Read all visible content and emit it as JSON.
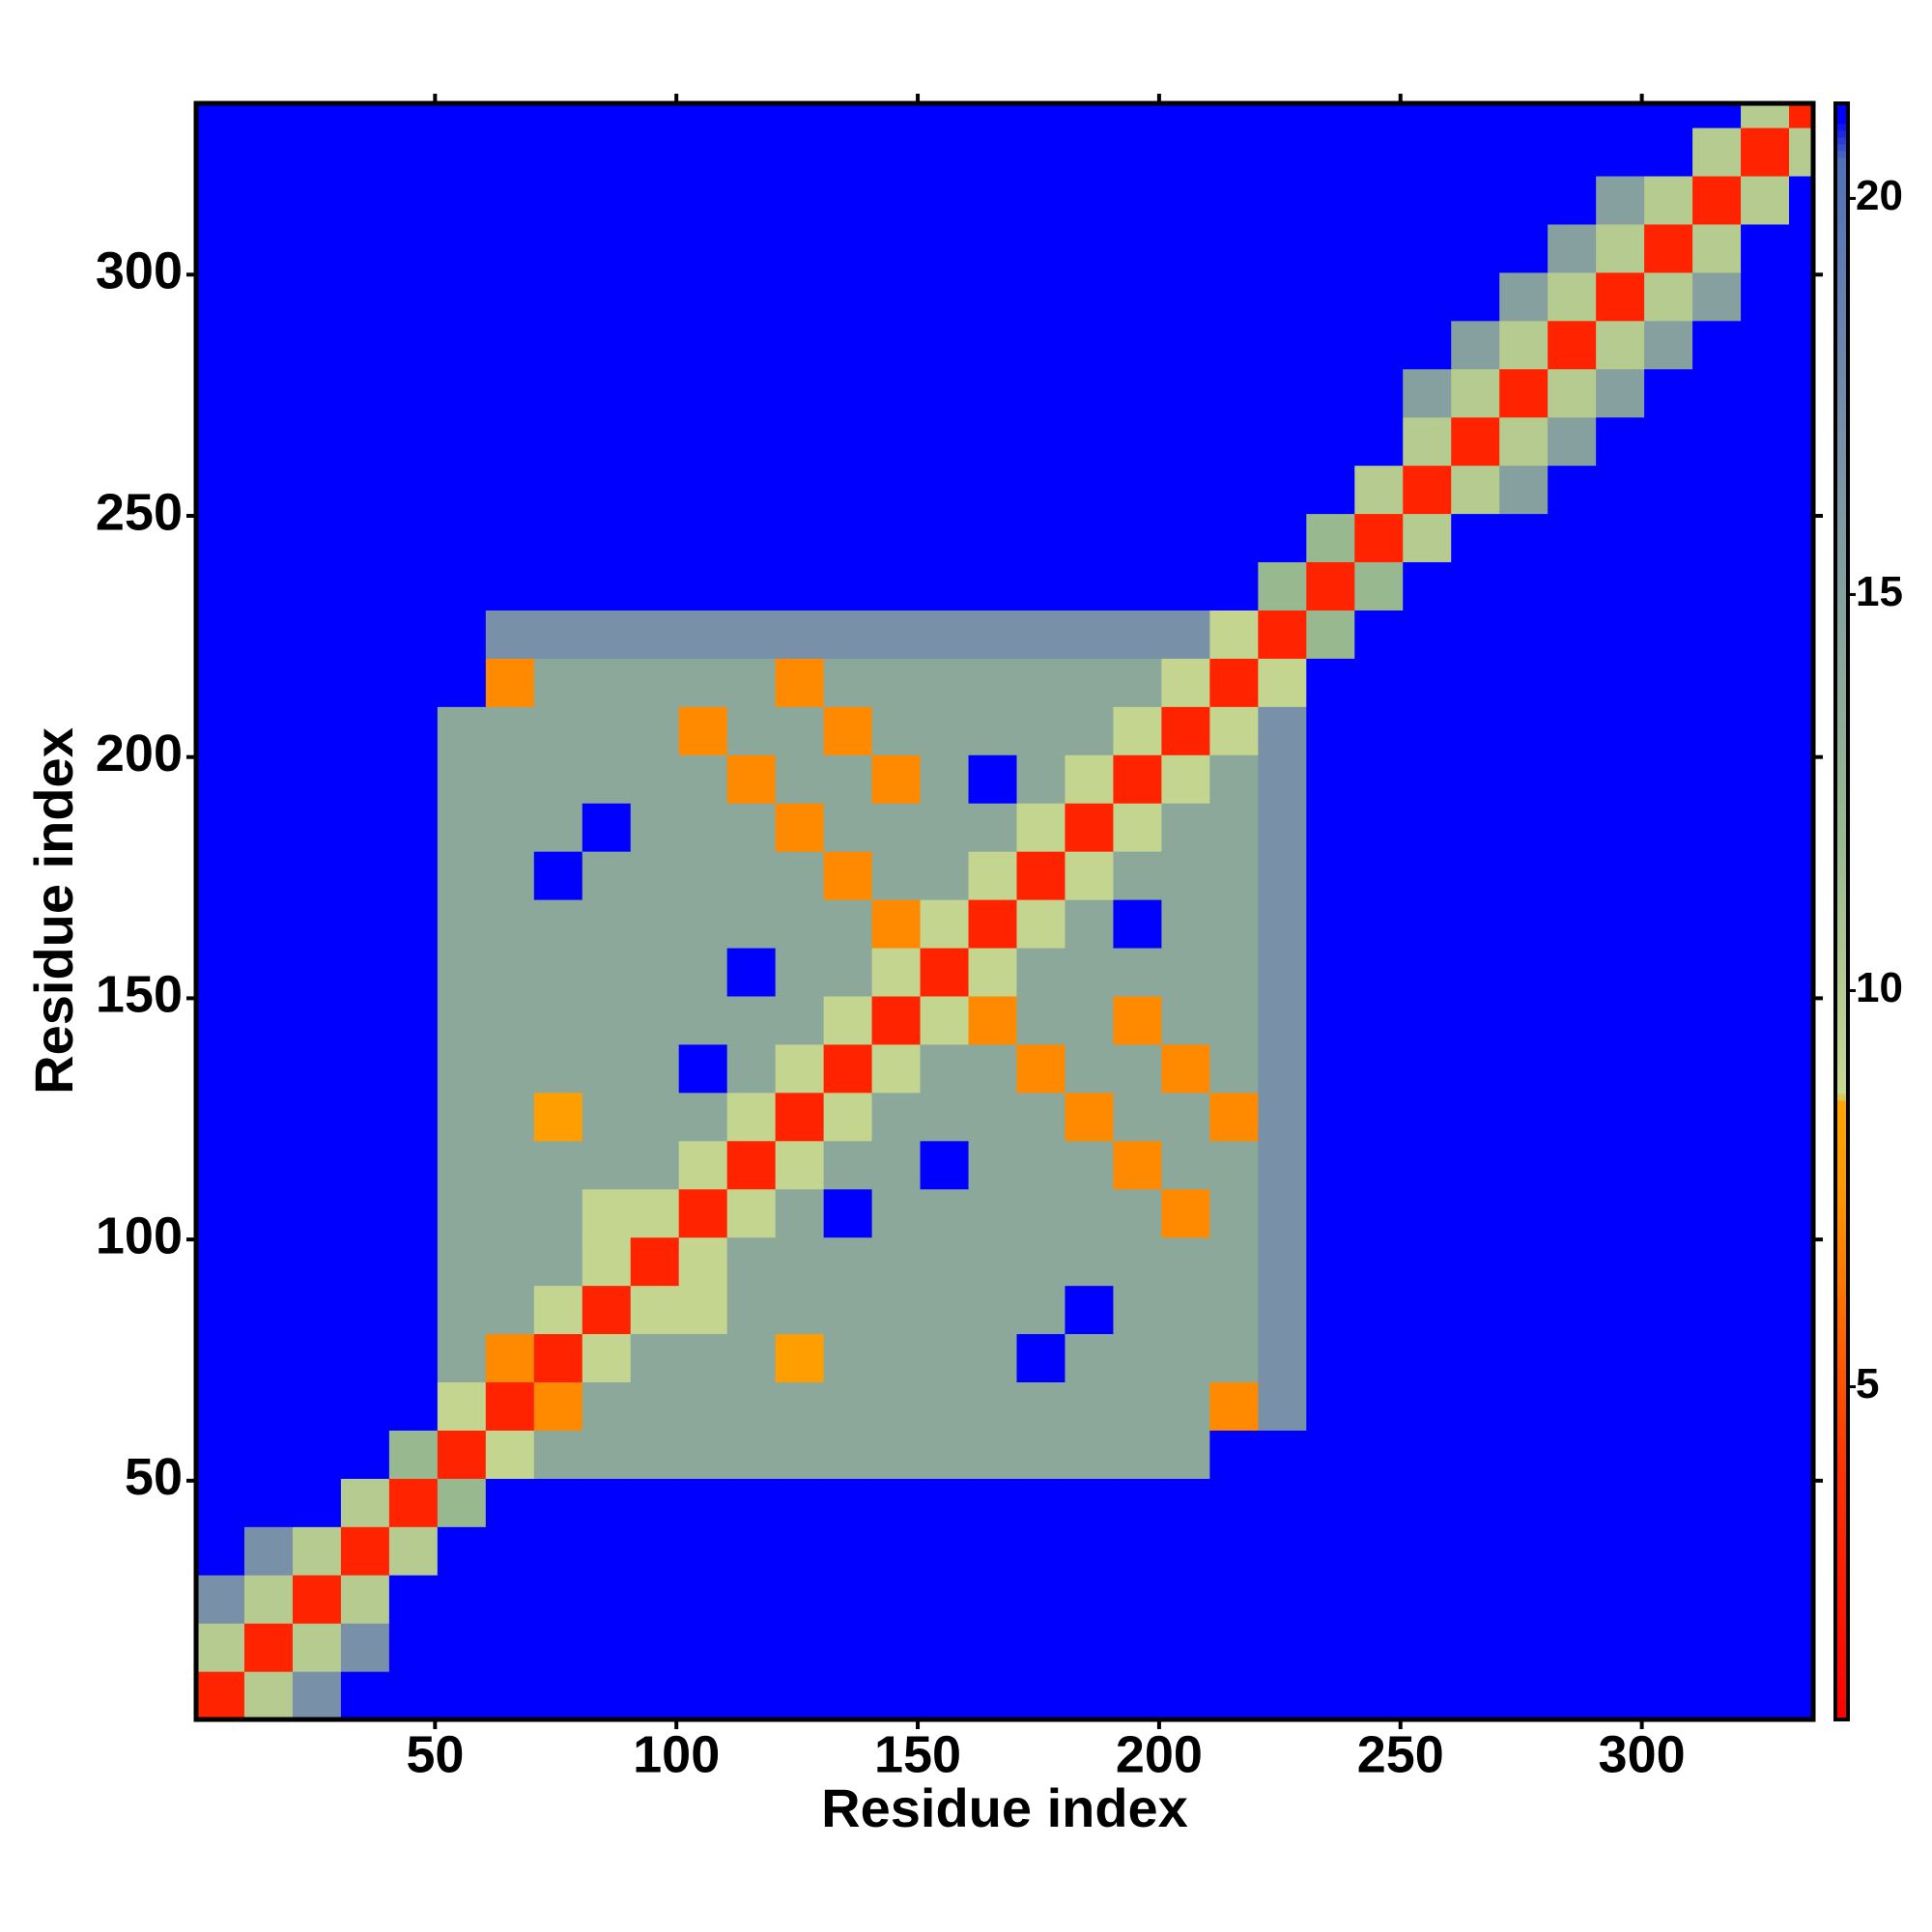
{
  "chart_data": {
    "type": "heatmap",
    "xlabel": "Residue index",
    "ylabel": "Residue index",
    "xlim": [
      0.5,
      335.5
    ],
    "ylim": [
      0.5,
      335.5
    ],
    "xticks": [
      50,
      100,
      150,
      200,
      250,
      300
    ],
    "yticks": [
      50,
      100,
      150,
      200,
      250,
      300
    ],
    "bins": [
      0.5,
      10.5,
      20.5,
      30.5,
      40.5,
      50.5,
      60.5,
      70.5,
      80.5,
      90.5,
      100.5,
      110.5,
      120.5,
      130.5,
      140.5,
      150.5,
      160.5,
      170.5,
      180.5,
      190.5,
      200.5,
      210.5,
      220.5,
      230.5,
      240.5,
      250.5,
      260.5,
      270.5,
      280.5,
      290.5,
      300.5,
      310.5,
      320.5,
      330.5,
      335.5
    ],
    "clim": [
      0.8,
      21.2
    ],
    "cticks": [
      5,
      10,
      15,
      20
    ],
    "colorscale": [
      [
        0.8,
        "#ff0000"
      ],
      [
        4,
        "#ff3300"
      ],
      [
        7.5,
        "#ff9900"
      ],
      [
        8.6,
        "#ffa500"
      ],
      [
        8.7,
        "#c8d890"
      ],
      [
        12,
        "#98b890"
      ],
      [
        17,
        "#7890a8"
      ],
      [
        20.5,
        "#5070b8"
      ],
      [
        21,
        "#0000ff"
      ],
      [
        21.2,
        "#0000ff"
      ]
    ],
    "z": [
      [
        3,
        10,
        17,
        21,
        21,
        21,
        21,
        21,
        21,
        21,
        21,
        21,
        21,
        21,
        21,
        21,
        21,
        21,
        21,
        21,
        21,
        21,
        21,
        21,
        21,
        21,
        21,
        21,
        21,
        21,
        21,
        21,
        21,
        21
      ],
      [
        10,
        3,
        10,
        17,
        21,
        21,
        21,
        21,
        21,
        21,
        21,
        21,
        21,
        21,
        21,
        21,
        21,
        21,
        21,
        21,
        21,
        21,
        21,
        21,
        21,
        21,
        21,
        21,
        21,
        21,
        21,
        21,
        21,
        21
      ],
      [
        17,
        10,
        3,
        10,
        21,
        21,
        21,
        21,
        21,
        21,
        21,
        21,
        21,
        21,
        21,
        21,
        21,
        21,
        21,
        21,
        21,
        21,
        21,
        21,
        21,
        21,
        21,
        21,
        21,
        21,
        21,
        21,
        21,
        21
      ],
      [
        21,
        17,
        10,
        3,
        10,
        21,
        21,
        21,
        21,
        21,
        21,
        21,
        21,
        21,
        21,
        21,
        21,
        21,
        21,
        21,
        21,
        21,
        21,
        21,
        21,
        21,
        21,
        21,
        21,
        21,
        21,
        21,
        21,
        21
      ],
      [
        21,
        21,
        21,
        10,
        3,
        12,
        21,
        21,
        21,
        21,
        21,
        21,
        21,
        21,
        21,
        21,
        21,
        21,
        21,
        21,
        21,
        21,
        21,
        21,
        21,
        21,
        21,
        21,
        21,
        21,
        21,
        21,
        21,
        21
      ],
      [
        21,
        21,
        21,
        21,
        12,
        3,
        9,
        14,
        14,
        14,
        14,
        14,
        14,
        14,
        14,
        14,
        14,
        14,
        14,
        14,
        14,
        21,
        21,
        21,
        21,
        21,
        21,
        21,
        21,
        21,
        21,
        21,
        21,
        21
      ],
      [
        21,
        21,
        21,
        21,
        21,
        9,
        3,
        7,
        14,
        14,
        14,
        14,
        14,
        14,
        14,
        14,
        14,
        14,
        14,
        14,
        14,
        7,
        17,
        21,
        21,
        21,
        21,
        21,
        21,
        21,
        21,
        21,
        21,
        21
      ],
      [
        21,
        21,
        21,
        21,
        21,
        14,
        7,
        3,
        9,
        14,
        14,
        14,
        8,
        14,
        14,
        14,
        14,
        21,
        14,
        14,
        14,
        14,
        17,
        21,
        21,
        21,
        21,
        21,
        21,
        21,
        21,
        21,
        21,
        21
      ],
      [
        21,
        21,
        21,
        21,
        21,
        14,
        14,
        9,
        3,
        9,
        9,
        14,
        14,
        14,
        14,
        14,
        14,
        14,
        21,
        14,
        14,
        14,
        17,
        21,
        21,
        21,
        21,
        21,
        21,
        21,
        21,
        21,
        21,
        21
      ],
      [
        21,
        21,
        21,
        21,
        21,
        14,
        14,
        14,
        9,
        3,
        9,
        14,
        14,
        14,
        14,
        14,
        14,
        14,
        14,
        14,
        14,
        14,
        17,
        21,
        21,
        21,
        21,
        21,
        21,
        21,
        21,
        21,
        21,
        21
      ],
      [
        21,
        21,
        21,
        21,
        21,
        14,
        14,
        14,
        9,
        9,
        3,
        9,
        14,
        21,
        14,
        14,
        14,
        14,
        14,
        14,
        7,
        14,
        17,
        21,
        21,
        21,
        21,
        21,
        21,
        21,
        21,
        21,
        21,
        21
      ],
      [
        21,
        21,
        21,
        21,
        21,
        14,
        14,
        14,
        14,
        14,
        9,
        3,
        9,
        14,
        14,
        21,
        14,
        14,
        14,
        7,
        14,
        14,
        17,
        21,
        21,
        21,
        21,
        21,
        21,
        21,
        21,
        21,
        21,
        21
      ],
      [
        21,
        21,
        21,
        21,
        21,
        14,
        14,
        8,
        14,
        14,
        14,
        9,
        3,
        9,
        14,
        14,
        14,
        14,
        7,
        14,
        14,
        7,
        17,
        21,
        21,
        21,
        21,
        21,
        21,
        21,
        21,
        21,
        21,
        21
      ],
      [
        21,
        21,
        21,
        21,
        21,
        14,
        14,
        14,
        14,
        14,
        21,
        14,
        9,
        3,
        9,
        14,
        14,
        7,
        14,
        14,
        7,
        14,
        17,
        21,
        21,
        21,
        21,
        21,
        21,
        21,
        21,
        21,
        21,
        21
      ],
      [
        21,
        21,
        21,
        21,
        21,
        14,
        14,
        14,
        14,
        14,
        14,
        14,
        14,
        9,
        3,
        9,
        7,
        14,
        14,
        7,
        14,
        14,
        17,
        21,
        21,
        21,
        21,
        21,
        21,
        21,
        21,
        21,
        21,
        21
      ],
      [
        21,
        21,
        21,
        21,
        21,
        14,
        14,
        14,
        14,
        14,
        14,
        21,
        14,
        14,
        9,
        3,
        9,
        14,
        14,
        14,
        14,
        14,
        17,
        21,
        21,
        21,
        21,
        21,
        21,
        21,
        21,
        21,
        21,
        21
      ],
      [
        21,
        21,
        21,
        21,
        21,
        14,
        14,
        14,
        14,
        14,
        14,
        14,
        14,
        14,
        7,
        9,
        3,
        9,
        14,
        21,
        14,
        14,
        17,
        21,
        21,
        21,
        21,
        21,
        21,
        21,
        21,
        21,
        21,
        21
      ],
      [
        21,
        21,
        21,
        21,
        21,
        14,
        14,
        21,
        14,
        14,
        14,
        14,
        14,
        7,
        14,
        14,
        9,
        3,
        9,
        14,
        14,
        14,
        17,
        21,
        21,
        21,
        21,
        21,
        21,
        21,
        21,
        21,
        21,
        21
      ],
      [
        21,
        21,
        21,
        21,
        21,
        14,
        14,
        14,
        21,
        14,
        14,
        14,
        7,
        14,
        14,
        14,
        14,
        9,
        3,
        9,
        14,
        14,
        17,
        21,
        21,
        21,
        21,
        21,
        21,
        21,
        21,
        21,
        21,
        21
      ],
      [
        21,
        21,
        21,
        21,
        21,
        14,
        14,
        14,
        14,
        14,
        14,
        7,
        14,
        14,
        7,
        14,
        21,
        14,
        9,
        3,
        9,
        14,
        17,
        21,
        21,
        21,
        21,
        21,
        21,
        21,
        21,
        21,
        21,
        21
      ],
      [
        21,
        21,
        21,
        21,
        21,
        14,
        14,
        14,
        14,
        14,
        7,
        14,
        14,
        7,
        14,
        14,
        14,
        14,
        14,
        9,
        3,
        9,
        17,
        21,
        21,
        21,
        21,
        21,
        21,
        21,
        21,
        21,
        21,
        21
      ],
      [
        21,
        21,
        21,
        21,
        21,
        21,
        7,
        14,
        14,
        14,
        14,
        14,
        7,
        14,
        14,
        14,
        14,
        14,
        14,
        14,
        9,
        3,
        9,
        21,
        21,
        21,
        21,
        21,
        21,
        21,
        21,
        21,
        21,
        21
      ],
      [
        21,
        21,
        21,
        21,
        21,
        21,
        17,
        17,
        17,
        17,
        17,
        17,
        17,
        17,
        17,
        17,
        17,
        17,
        17,
        17,
        17,
        9,
        3,
        12,
        21,
        21,
        21,
        21,
        21,
        21,
        21,
        21,
        21,
        21
      ],
      [
        21,
        21,
        21,
        21,
        21,
        21,
        21,
        21,
        21,
        21,
        21,
        21,
        21,
        21,
        21,
        21,
        21,
        21,
        21,
        21,
        21,
        21,
        12,
        3,
        12,
        21,
        21,
        21,
        21,
        21,
        21,
        21,
        21,
        21
      ],
      [
        21,
        21,
        21,
        21,
        21,
        21,
        21,
        21,
        21,
        21,
        21,
        21,
        21,
        21,
        21,
        21,
        21,
        21,
        21,
        21,
        21,
        21,
        21,
        12,
        3,
        10,
        21,
        21,
        21,
        21,
        21,
        21,
        21,
        21
      ],
      [
        21,
        21,
        21,
        21,
        21,
        21,
        21,
        21,
        21,
        21,
        21,
        21,
        21,
        21,
        21,
        21,
        21,
        21,
        21,
        21,
        21,
        21,
        21,
        21,
        10,
        3,
        10,
        15,
        21,
        21,
        21,
        21,
        21,
        21
      ],
      [
        21,
        21,
        21,
        21,
        21,
        21,
        21,
        21,
        21,
        21,
        21,
        21,
        21,
        21,
        21,
        21,
        21,
        21,
        21,
        21,
        21,
        21,
        21,
        21,
        21,
        10,
        3,
        10,
        15,
        21,
        21,
        21,
        21,
        21
      ],
      [
        21,
        21,
        21,
        21,
        21,
        21,
        21,
        21,
        21,
        21,
        21,
        21,
        21,
        21,
        21,
        21,
        21,
        21,
        21,
        21,
        21,
        21,
        21,
        21,
        21,
        15,
        10,
        3,
        10,
        15,
        21,
        21,
        21,
        21
      ],
      [
        21,
        21,
        21,
        21,
        21,
        21,
        21,
        21,
        21,
        21,
        21,
        21,
        21,
        21,
        21,
        21,
        21,
        21,
        21,
        21,
        21,
        21,
        21,
        21,
        21,
        21,
        15,
        10,
        3,
        10,
        15,
        21,
        21,
        21
      ],
      [
        21,
        21,
        21,
        21,
        21,
        21,
        21,
        21,
        21,
        21,
        21,
        21,
        21,
        21,
        21,
        21,
        21,
        21,
        21,
        21,
        21,
        21,
        21,
        21,
        21,
        21,
        21,
        15,
        10,
        3,
        10,
        15,
        21,
        21
      ],
      [
        21,
        21,
        21,
        21,
        21,
        21,
        21,
        21,
        21,
        21,
        21,
        21,
        21,
        21,
        21,
        21,
        21,
        21,
        21,
        21,
        21,
        21,
        21,
        21,
        21,
        21,
        21,
        21,
        15,
        10,
        3,
        10,
        21,
        21
      ],
      [
        21,
        21,
        21,
        21,
        21,
        21,
        21,
        21,
        21,
        21,
        21,
        21,
        21,
        21,
        21,
        21,
        21,
        21,
        21,
        21,
        21,
        21,
        21,
        21,
        21,
        21,
        21,
        21,
        21,
        15,
        10,
        3,
        10,
        21
      ],
      [
        21,
        21,
        21,
        21,
        21,
        21,
        21,
        21,
        21,
        21,
        21,
        21,
        21,
        21,
        21,
        21,
        21,
        21,
        21,
        21,
        21,
        21,
        21,
        21,
        21,
        21,
        21,
        21,
        21,
        21,
        21,
        10,
        3,
        10
      ],
      [
        21,
        21,
        21,
        21,
        21,
        21,
        21,
        21,
        21,
        21,
        21,
        21,
        21,
        21,
        21,
        21,
        21,
        21,
        21,
        21,
        21,
        21,
        21,
        21,
        21,
        21,
        21,
        21,
        21,
        21,
        21,
        21,
        10,
        3
      ]
    ]
  }
}
